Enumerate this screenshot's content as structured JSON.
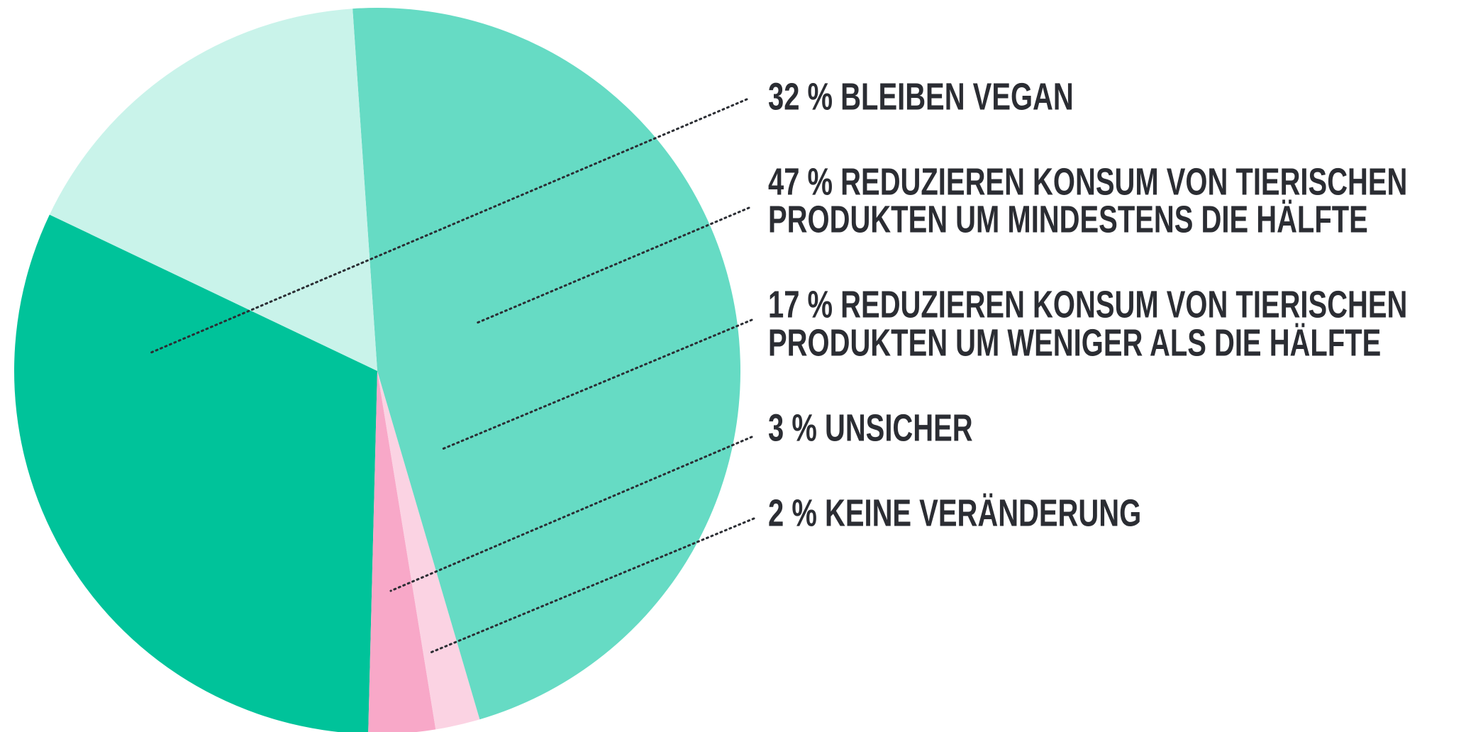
{
  "chart_data": {
    "type": "pie",
    "values": [
      32,
      47,
      17,
      3,
      2
    ],
    "labels": [
      [
        "32 % BLEIBEN VEGAN"
      ],
      [
        "47 % REDUZIEREN KONSUM VON TIERISCHEN",
        "PRODUKTEN UM MINDESTENS DIE HÄLFTE"
      ],
      [
        "17 % REDUZIEREN KONSUM VON TIERISCHEN",
        "PRODUKTEN UM WENIGER ALS DIE HÄLFTE"
      ],
      [
        "3 % UNSICHER"
      ],
      [
        "2 % KEINE VERÄNDERUNG"
      ]
    ],
    "colors": [
      "#00c39a",
      "#66dbc4",
      "#c9f3ea",
      "#f8a8c8",
      "#fbd3e3"
    ]
  }
}
